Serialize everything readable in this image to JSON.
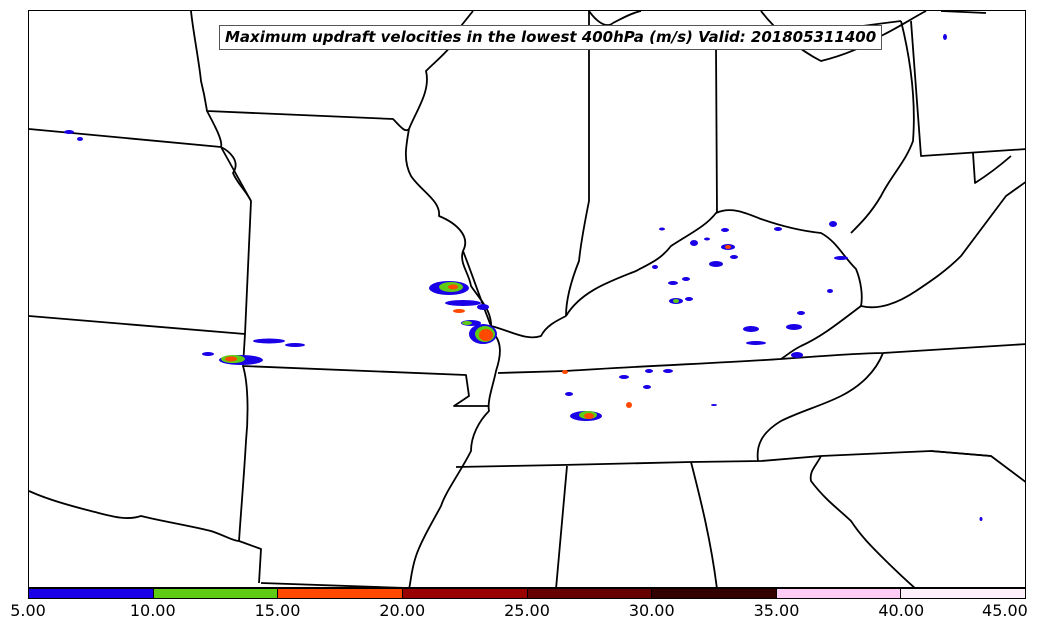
{
  "title": "Maximum updraft velocities in the lowest 400hPa (m/s) Valid: 201805311400",
  "colorbar": {
    "ticks": [
      "5.00",
      "10.00",
      "15.00",
      "20.00",
      "25.00",
      "30.00",
      "35.00",
      "40.00",
      "45.00"
    ],
    "colors": [
      "#1a00e6",
      "#5ecc14",
      "#ff4800",
      "#990000",
      "#660000",
      "#330000",
      "#ffccf5",
      "#fff0fc"
    ]
  }
}
